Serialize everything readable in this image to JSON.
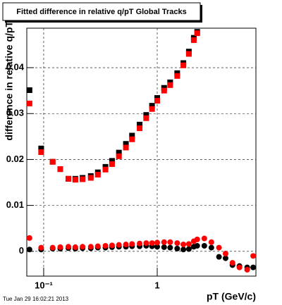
{
  "chart_data": {
    "type": "scatter",
    "title": "Fitted difference in relative q/pT  Global Tracks",
    "ylabel": "difference in relative q/pT",
    "xlabel": "pT (GeV/c)",
    "timestamp": "Tue Jan 29 16:02:21 2013",
    "xscale": "log",
    "grid": true,
    "xlim": [
      0.071,
      7.4
    ],
    "ylim": [
      -0.0054,
      0.0486
    ],
    "xticks": [
      {
        "value": 0.1,
        "label": "10⁻¹"
      },
      1
    ],
    "yticks": [
      0,
      0.01,
      0.02,
      0.03,
      0.04
    ],
    "x": [
      0.075,
      0.095,
      0.12,
      0.14,
      0.165,
      0.19,
      0.22,
      0.26,
      0.3,
      0.35,
      0.4,
      0.46,
      0.53,
      0.6,
      0.7,
      0.8,
      0.9,
      1.0,
      1.15,
      1.3,
      1.5,
      1.7,
      1.9,
      2.1,
      2.25,
      2.6,
      3.0,
      3.5,
      4.0,
      4.6,
      5.3,
      6.2,
      7.0
    ],
    "series": [
      {
        "color": "#000000",
        "marker": "square",
        "values": [
          0.0351,
          0.0224,
          0.0195,
          0.0179,
          0.0158,
          0.0158,
          0.016,
          0.0164,
          0.0172,
          0.0184,
          0.0197,
          0.0215,
          0.0234,
          0.0252,
          0.0276,
          0.0297,
          0.0317,
          0.0334,
          0.0356,
          0.0368,
          0.0388,
          0.041,
          0.0435,
          0.0465,
          0.0478,
          null,
          null,
          null,
          null,
          null,
          null,
          null,
          null
        ]
      },
      {
        "color": "#ff0000",
        "marker": "square",
        "values": [
          0.0322,
          0.0216,
          0.0195,
          0.0179,
          0.0158,
          0.0156,
          0.0157,
          0.016,
          0.0167,
          0.0178,
          0.019,
          0.0207,
          0.0226,
          0.0244,
          0.0268,
          0.029,
          0.031,
          0.0328,
          0.035,
          0.0362,
          0.0382,
          0.0405,
          0.043,
          0.046,
          0.0475,
          null,
          null,
          null,
          null,
          null,
          null,
          null,
          null
        ]
      },
      {
        "color": "#000000",
        "marker": "circle",
        "values": [
          0.0004,
          0.0004,
          0.0006,
          0.0006,
          0.0007,
          0.0006,
          0.0007,
          0.0007,
          0.0008,
          0.0008,
          0.0009,
          0.001,
          0.001,
          0.0011,
          0.0011,
          0.0012,
          0.0011,
          0.001,
          0.0009,
          0.0008,
          0.0006,
          0.0004,
          0.0005,
          0.001,
          0.0012,
          0.0012,
          0.0008,
          -0.0012,
          -0.0015,
          -0.003,
          -0.0032,
          -0.0035,
          -0.0035
        ]
      },
      {
        "color": "#ff0000",
        "marker": "circle",
        "values": [
          0.0029,
          0.0008,
          0.0008,
          0.0009,
          0.001,
          0.0009,
          0.001,
          0.001,
          0.0011,
          0.0012,
          0.0013,
          0.0014,
          0.0015,
          0.0016,
          0.0017,
          0.0018,
          0.0018,
          0.0019,
          0.002,
          0.002,
          0.0018,
          0.0015,
          0.0016,
          0.0022,
          0.0026,
          0.0028,
          0.002,
          0.0008,
          -0.0005,
          -0.0025,
          -0.0035,
          -0.004,
          -0.001
        ]
      }
    ]
  }
}
